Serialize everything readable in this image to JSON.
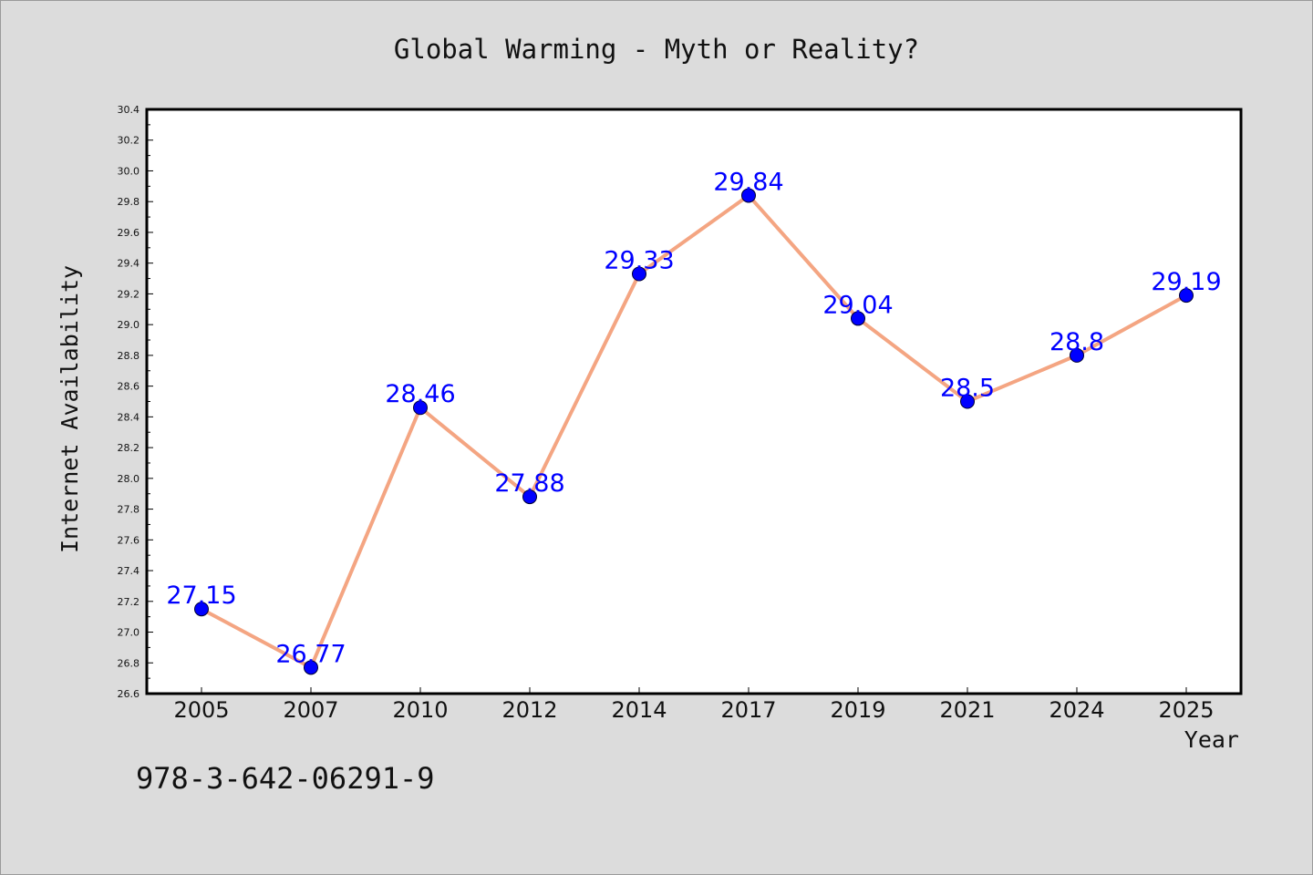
{
  "colors": {
    "background": "#dcdcdc",
    "plot_background": "#ffffff",
    "line": "#f4a582",
    "marker": "#0000ff",
    "label": "#0000ff"
  },
  "footnote": "978-3-642-06291-9",
  "chart_data": {
    "type": "line",
    "title": "Global Warming - Myth or Reality?",
    "xlabel": "Year",
    "ylabel": "Internet Availability",
    "categories": [
      "2005",
      "2007",
      "2010",
      "2012",
      "2014",
      "2017",
      "2019",
      "2021",
      "2024",
      "2025"
    ],
    "series": [
      {
        "values": [
          27.15,
          26.77,
          28.46,
          27.88,
          29.33,
          29.84,
          29.04,
          28.5,
          28.8,
          29.19
        ],
        "labels": [
          "27.15",
          "26.77",
          "28.46",
          "27.88",
          "29.33",
          "29.84",
          "29.04",
          "28.5",
          "28.8",
          "29.19"
        ]
      }
    ],
    "ylim": [
      26.6,
      30.4
    ],
    "yticks": [
      "26.6",
      "26.8",
      "27.0",
      "27.2",
      "27.4",
      "27.6",
      "27.8",
      "28.0",
      "28.2",
      "28.4",
      "28.6",
      "28.8",
      "29.0",
      "29.2",
      "29.4",
      "29.6",
      "29.8",
      "30.0",
      "30.2",
      "30.4"
    ],
    "grid": false,
    "legend": "none"
  }
}
